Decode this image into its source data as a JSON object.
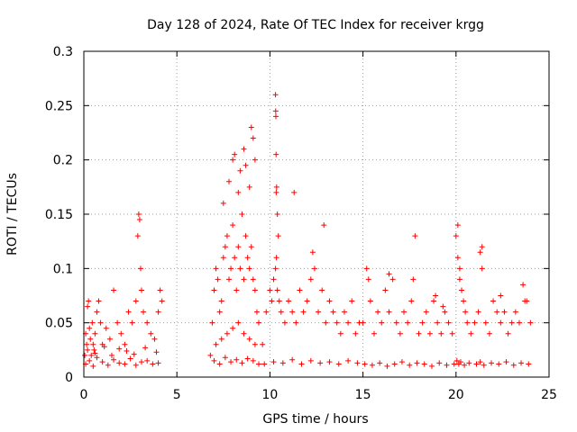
{
  "chart_data": {
    "type": "scatter",
    "title": "Day 128 of 2024, Rate Of TEC Index for receiver krgg",
    "xlabel": "GPS time / hours",
    "ylabel": "ROTI / TECUs",
    "xlim": [
      0,
      25
    ],
    "ylim": [
      0,
      0.3
    ],
    "xticks": [
      "0",
      "5",
      "10",
      "15",
      "20",
      "25"
    ],
    "yticks": [
      "0",
      "0.05",
      "0.1",
      "0.15",
      "0.2",
      "0.25",
      "0.3"
    ],
    "grid": true,
    "marker": "plus",
    "marker_color": "#ff0000",
    "series": [
      {
        "x": [
          0.05,
          0.1,
          0.15,
          0.2,
          0.25,
          0.3,
          0.35,
          0.4,
          0.45,
          0.5,
          0.55,
          0.6,
          0.7,
          0.8,
          0.9,
          1.0,
          1.2,
          1.4,
          1.6,
          1.8,
          2.0,
          2.2,
          2.4,
          2.6,
          2.8,
          2.9,
          2.95,
          3.0,
          3.05,
          3.1,
          3.2,
          3.4,
          3.6,
          3.8,
          4.0,
          4.1,
          4.2,
          0.1,
          0.3,
          0.5,
          0.7,
          1.0,
          1.3,
          1.6,
          1.9,
          2.2,
          2.5,
          2.8,
          3.1,
          3.4,
          3.7,
          4.0,
          0.2,
          0.6,
          1.1,
          1.5,
          1.9,
          2.3,
          2.7,
          3.3,
          3.9,
          6.8,
          6.9,
          7.0,
          7.1,
          7.2,
          7.3,
          7.4,
          7.5,
          7.6,
          7.7,
          7.8,
          7.9,
          8.0,
          8.1,
          8.2,
          8.3,
          8.4,
          8.5,
          8.6,
          8.7,
          8.8,
          8.9,
          9.0,
          9.1,
          9.2,
          9.3,
          9.4,
          7.0,
          7.3,
          7.6,
          7.9,
          8.2,
          8.5,
          8.8,
          9.1,
          9.4,
          7.5,
          7.8,
          8.0,
          8.1,
          8.3,
          8.4,
          8.6,
          8.7,
          8.9,
          9.0,
          9.1,
          9.2,
          7.1,
          7.4,
          7.7,
          8.0,
          8.3,
          8.6,
          8.9,
          9.2,
          9.6,
          9.8,
          10.0,
          10.1,
          10.2,
          10.3,
          10.35,
          10.4,
          10.5,
          10.6,
          10.8,
          11.0,
          11.2,
          11.4,
          11.6,
          11.8,
          12.0,
          12.2,
          12.4,
          12.6,
          12.8,
          13.0,
          13.2,
          13.4,
          13.6,
          13.8,
          14.0,
          14.2,
          14.4,
          14.6,
          14.8,
          9.7,
          10.2,
          10.7,
          11.2,
          11.7,
          12.2,
          12.7,
          13.2,
          13.7,
          14.2,
          14.7,
          10.3,
          10.31,
          10.32,
          10.33,
          10.34,
          10.36,
          10.4,
          10.45,
          11.3,
          12.3,
          12.9,
          15.0,
          15.2,
          15.4,
          15.6,
          15.8,
          16.0,
          16.2,
          16.4,
          16.6,
          16.8,
          17.0,
          17.2,
          17.4,
          17.6,
          17.8,
          18.0,
          18.2,
          18.4,
          18.6,
          18.8,
          19.0,
          19.2,
          19.4,
          19.6,
          19.8,
          15.1,
          15.5,
          15.9,
          16.3,
          16.7,
          17.1,
          17.5,
          17.9,
          18.3,
          18.7,
          19.1,
          19.5,
          19.9,
          15.3,
          16.4,
          17.7,
          18.9,
          19.3,
          20.0,
          20.1,
          20.2,
          20.3,
          20.4,
          20.5,
          20.6,
          20.8,
          21.0,
          21.2,
          21.4,
          21.6,
          21.8,
          22.0,
          22.2,
          22.4,
          22.6,
          22.8,
          23.0,
          23.2,
          23.4,
          23.6,
          23.8,
          24.0,
          20.05,
          20.15,
          20.25,
          20.45,
          20.7,
          21.1,
          21.3,
          21.5,
          21.9,
          22.3,
          22.7,
          23.1,
          23.5,
          23.9,
          20.1,
          20.2,
          20.3,
          21.3,
          21.4,
          22.4,
          23.7
        ],
        "y": [
          0.02,
          0.04,
          0.03,
          0.065,
          0.07,
          0.045,
          0.035,
          0.02,
          0.05,
          0.03,
          0.025,
          0.04,
          0.06,
          0.07,
          0.05,
          0.03,
          0.045,
          0.035,
          0.08,
          0.05,
          0.04,
          0.03,
          0.06,
          0.05,
          0.07,
          0.13,
          0.15,
          0.145,
          0.1,
          0.08,
          0.06,
          0.05,
          0.04,
          0.035,
          0.06,
          0.08,
          0.07,
          0.012,
          0.015,
          0.01,
          0.018,
          0.014,
          0.011,
          0.016,
          0.013,
          0.012,
          0.017,
          0.011,
          0.014,
          0.015,
          0.012,
          0.013,
          0.025,
          0.022,
          0.028,
          0.02,
          0.026,
          0.024,
          0.021,
          0.027,
          0.023,
          0.02,
          0.05,
          0.08,
          0.1,
          0.09,
          0.06,
          0.07,
          0.11,
          0.12,
          0.13,
          0.09,
          0.1,
          0.14,
          0.11,
          0.08,
          0.12,
          0.1,
          0.15,
          0.09,
          0.13,
          0.11,
          0.1,
          0.12,
          0.09,
          0.08,
          0.06,
          0.05,
          0.015,
          0.012,
          0.018,
          0.014,
          0.016,
          0.013,
          0.017,
          0.015,
          0.012,
          0.16,
          0.18,
          0.2,
          0.205,
          0.17,
          0.19,
          0.21,
          0.195,
          0.175,
          0.23,
          0.22,
          0.2,
          0.03,
          0.035,
          0.04,
          0.045,
          0.05,
          0.04,
          0.035,
          0.03,
          0.03,
          0.06,
          0.08,
          0.07,
          0.09,
          0.1,
          0.11,
          0.08,
          0.07,
          0.06,
          0.05,
          0.07,
          0.06,
          0.05,
          0.08,
          0.06,
          0.07,
          0.09,
          0.1,
          0.06,
          0.08,
          0.05,
          0.07,
          0.06,
          0.05,
          0.04,
          0.06,
          0.05,
          0.07,
          0.04,
          0.05,
          0.012,
          0.014,
          0.013,
          0.016,
          0.012,
          0.015,
          0.013,
          0.014,
          0.012,
          0.015,
          0.013,
          0.26,
          0.245,
          0.24,
          0.205,
          0.17,
          0.175,
          0.15,
          0.13,
          0.17,
          0.115,
          0.14,
          0.05,
          0.1,
          0.07,
          0.04,
          0.06,
          0.05,
          0.08,
          0.06,
          0.09,
          0.05,
          0.04,
          0.06,
          0.05,
          0.07,
          0.13,
          0.04,
          0.05,
          0.06,
          0.04,
          0.07,
          0.05,
          0.04,
          0.06,
          0.05,
          0.04,
          0.012,
          0.011,
          0.013,
          0.01,
          0.012,
          0.014,
          0.011,
          0.013,
          0.012,
          0.01,
          0.013,
          0.011,
          0.012,
          0.09,
          0.095,
          0.09,
          0.075,
          0.065,
          0.13,
          0.14,
          0.1,
          0.08,
          0.07,
          0.06,
          0.05,
          0.04,
          0.05,
          0.06,
          0.12,
          0.05,
          0.04,
          0.07,
          0.06,
          0.05,
          0.06,
          0.04,
          0.05,
          0.06,
          0.05,
          0.085,
          0.07,
          0.05,
          0.015,
          0.012,
          0.014,
          0.011,
          0.013,
          0.012,
          0.014,
          0.011,
          0.013,
          0.012,
          0.014,
          0.011,
          0.013,
          0.012,
          0.11,
          0.09,
          0.08,
          0.115,
          0.1,
          0.075,
          0.07
        ]
      }
    ]
  }
}
